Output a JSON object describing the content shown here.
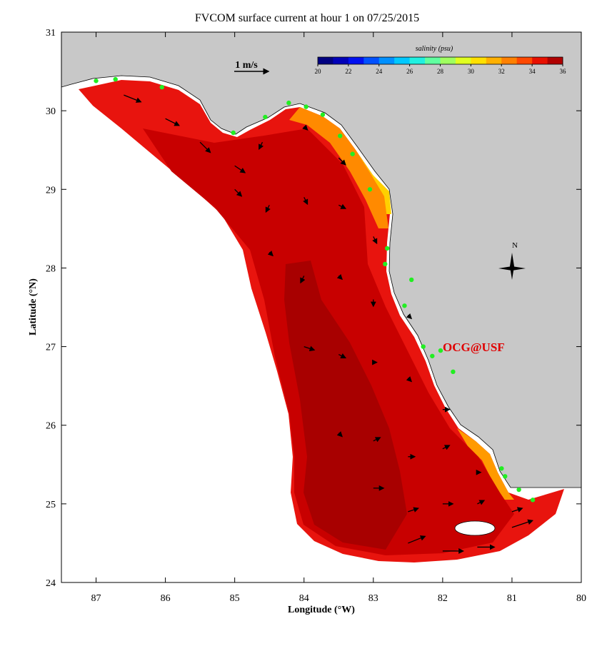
{
  "chart_data": {
    "type": "map",
    "title": "FVCOM surface current at hour 1 on 07/25/2015",
    "xlabel": "Longitude (°W)",
    "ylabel": "Latitude (°N)",
    "xlim": [
      87.5,
      80
    ],
    "xticks": [
      87,
      86,
      85,
      84,
      83,
      82,
      81,
      80
    ],
    "ylim": [
      24,
      31
    ],
    "yticks": [
      24,
      25,
      26,
      27,
      28,
      29,
      30,
      31
    ],
    "scale_label": "1 m/s",
    "annotation": "OCG@USF",
    "compass_label": "N",
    "colorbar": {
      "label": "salinity (psu)",
      "clim": [
        20,
        36
      ],
      "ticks": [
        20,
        22,
        24,
        26,
        28,
        30,
        32,
        34,
        36
      ],
      "colors": [
        "#000080",
        "#0000b8",
        "#0010f0",
        "#0050ff",
        "#0090ff",
        "#00c8ff",
        "#20f0e0",
        "#60ffa0",
        "#a0ff60",
        "#e0ff20",
        "#ffe000",
        "#ffb000",
        "#ff8000",
        "#ff4800",
        "#e81000",
        "#b00000"
      ]
    },
    "stations": {
      "lon": [
        87.0,
        86.72,
        86.05,
        85.02,
        84.56,
        84.22,
        83.97,
        83.73,
        83.48,
        83.3,
        83.05,
        82.8,
        82.83,
        82.45,
        82.55,
        82.28,
        82.15,
        82.03,
        81.85,
        81.15,
        81.1,
        80.9,
        80.7
      ],
      "lat": [
        30.38,
        30.4,
        30.3,
        29.72,
        29.92,
        30.1,
        30.05,
        29.95,
        29.68,
        29.45,
        29.0,
        28.25,
        28.05,
        27.85,
        27.52,
        27.0,
        26.88,
        26.95,
        26.68,
        25.45,
        25.35,
        25.18,
        25.05
      ]
    },
    "vectors": {
      "lon": [
        86.6,
        86.0,
        85.5,
        85.0,
        84.6,
        84.0,
        83.5,
        85.0,
        84.5,
        84.0,
        83.5,
        83.0,
        84.5,
        84.0,
        83.5,
        83.0,
        82.5,
        84.0,
        83.5,
        83.0,
        82.5,
        82.0,
        83.5,
        83.0,
        82.5,
        82.0,
        81.5,
        83.0,
        82.5,
        82.0,
        81.5,
        81.0,
        82.5,
        82.0,
        81.5,
        81.0
      ],
      "lat": [
        30.2,
        29.9,
        29.6,
        29.3,
        29.6,
        29.8,
        29.4,
        29.0,
        28.8,
        28.9,
        28.8,
        28.4,
        28.2,
        27.9,
        27.9,
        27.6,
        27.4,
        27.0,
        26.9,
        26.8,
        26.6,
        26.2,
        25.9,
        25.8,
        25.6,
        25.7,
        25.4,
        25.2,
        24.9,
        25.0,
        25.0,
        24.9,
        24.5,
        24.4,
        24.45,
        24.7
      ],
      "u": [
        0.5,
        0.4,
        0.3,
        0.3,
        -0.1,
        0.1,
        0.2,
        0.2,
        -0.1,
        0.1,
        0.2,
        0.1,
        0.1,
        -0.1,
        0.1,
        0.0,
        0.1,
        0.3,
        0.2,
        0.1,
        0.1,
        0.2,
        0.1,
        0.2,
        0.2,
        0.2,
        0.1,
        0.3,
        0.3,
        0.3,
        0.2,
        0.3,
        0.5,
        0.6,
        0.5,
        0.6
      ],
      "v": [
        -0.2,
        -0.2,
        -0.3,
        -0.2,
        -0.2,
        -0.1,
        -0.2,
        -0.2,
        -0.2,
        -0.2,
        -0.1,
        -0.2,
        -0.1,
        -0.2,
        -0.1,
        -0.2,
        -0.1,
        -0.1,
        -0.1,
        0.0,
        -0.1,
        0.0,
        -0.1,
        0.1,
        0.0,
        0.1,
        0.0,
        0.0,
        0.1,
        0.0,
        0.1,
        0.1,
        0.2,
        0.0,
        0.0,
        0.2
      ]
    }
  }
}
